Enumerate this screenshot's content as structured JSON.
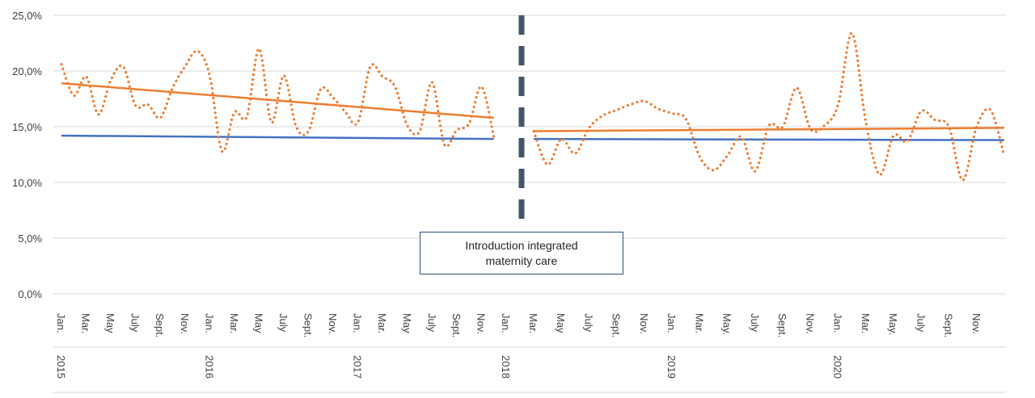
{
  "chart_data": {
    "type": "line",
    "annotation": "Introduction integrated maternity care",
    "y_ticks": [
      "0,0%",
      "5,0%",
      "10,0%",
      "15,0%",
      "20,0%",
      "25,0%"
    ],
    "ylim": [
      0,
      25
    ],
    "grid": true,
    "colors": {
      "observed": "#ED7D31",
      "trend_orange": "#ED7D31",
      "trend_blue": "#4472C4",
      "divider": "#44546A"
    },
    "years": [
      {
        "label": "2015",
        "month_index": 0
      },
      {
        "label": "2016",
        "month_index": 12
      },
      {
        "label": "2017",
        "month_index": 24
      },
      {
        "label": "2018",
        "month_index": 36
      },
      {
        "label": "2019",
        "month_index": 48
      },
      {
        "label": "2020",
        "month_index": 60
      }
    ],
    "x_tick_labels": [
      {
        "i": 0,
        "label": "Jan."
      },
      {
        "i": 2,
        "label": "Mar."
      },
      {
        "i": 4,
        "label": "May"
      },
      {
        "i": 6,
        "label": "July"
      },
      {
        "i": 8,
        "label": "Sept."
      },
      {
        "i": 10,
        "label": "Nov."
      },
      {
        "i": 12,
        "label": "Jan."
      },
      {
        "i": 14,
        "label": "Mar."
      },
      {
        "i": 16,
        "label": "May"
      },
      {
        "i": 18,
        "label": "July"
      },
      {
        "i": 20,
        "label": "Sept."
      },
      {
        "i": 22,
        "label": "Nov."
      },
      {
        "i": 24,
        "label": "Jan."
      },
      {
        "i": 26,
        "label": "Mar."
      },
      {
        "i": 28,
        "label": "May"
      },
      {
        "i": 30,
        "label": "July"
      },
      {
        "i": 32,
        "label": "Sept."
      },
      {
        "i": 34,
        "label": "Nov."
      },
      {
        "i": 36,
        "label": "Jan."
      },
      {
        "i": 38,
        "label": "Mar."
      },
      {
        "i": 40,
        "label": "May"
      },
      {
        "i": 42,
        "label": "July"
      },
      {
        "i": 44,
        "label": "Sept."
      },
      {
        "i": 46,
        "label": "Nov."
      },
      {
        "i": 48,
        "label": "Jan."
      },
      {
        "i": 50,
        "label": "Mar."
      },
      {
        "i": 52,
        "label": "May."
      },
      {
        "i": 54,
        "label": "July"
      },
      {
        "i": 56,
        "label": "Sept."
      },
      {
        "i": 58,
        "label": "Nov."
      },
      {
        "i": 60,
        "label": "Jan."
      },
      {
        "i": 62,
        "label": "Mar."
      },
      {
        "i": 64,
        "label": "May."
      },
      {
        "i": 66,
        "label": "July"
      },
      {
        "i": 68,
        "label": "Sept."
      },
      {
        "i": 70,
        "label": "Nov."
      }
    ],
    "segments": [
      {
        "start_index": 0,
        "observed": [
          20.6,
          17.8,
          19.5,
          16.1,
          19.2,
          20.4,
          16.9,
          17.0,
          15.8,
          18.5,
          20.4,
          21.8,
          19.6,
          12.8,
          16.3,
          15.9,
          22.0,
          15.4,
          19.6,
          15.0,
          14.6,
          18.4,
          17.6,
          16.3,
          15.4,
          20.4,
          19.5,
          18.6,
          15.1,
          14.6,
          19.0,
          13.4,
          14.7,
          15.3,
          18.6,
          14.1
        ],
        "trend_orange": [
          18.9,
          15.8
        ],
        "trend_blue": [
          14.2,
          13.9
        ]
      },
      {
        "start_index": 38,
        "observed": [
          14.6,
          11.6,
          13.9,
          12.6,
          14.9,
          16.0,
          16.5,
          17.0,
          17.3,
          16.6,
          16.2,
          15.7,
          12.3,
          11.1,
          12.4,
          14.1,
          11.0,
          15.1,
          15.0,
          18.5,
          14.8,
          15.1,
          17.0,
          23.4,
          15.4,
          10.7,
          14.2,
          13.7,
          16.4,
          15.6,
          15.0,
          10.2,
          15.0,
          16.5,
          12.4
        ],
        "trend_orange": [
          14.6,
          14.9
        ],
        "trend_blue": [
          13.9,
          13.8
        ]
      }
    ]
  }
}
